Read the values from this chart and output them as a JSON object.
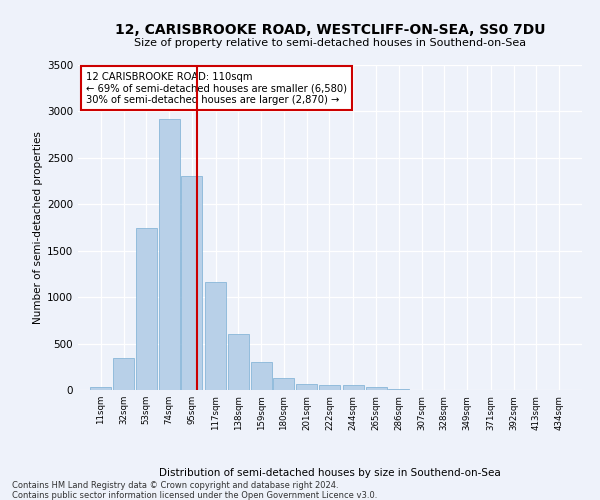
{
  "title": "12, CARISBROOKE ROAD, WESTCLIFF-ON-SEA, SS0 7DU",
  "subtitle": "Size of property relative to semi-detached houses in Southend-on-Sea",
  "xlabel": "Distribution of semi-detached houses by size in Southend-on-Sea",
  "ylabel": "Number of semi-detached properties",
  "footnote1": "Contains HM Land Registry data © Crown copyright and database right 2024.",
  "footnote2": "Contains public sector information licensed under the Open Government Licence v3.0.",
  "property_size": 110,
  "annotation_line1": "12 CARISBROOKE ROAD: 110sqm",
  "annotation_line2": "← 69% of semi-detached houses are smaller (6,580)",
  "annotation_line3": "30% of semi-detached houses are larger (2,870) →",
  "bar_color": "#b8d0e8",
  "bar_edgecolor": "#7aaed4",
  "vline_color": "#cc0000",
  "background_color": "#eef2fa",
  "annotation_box_color": "#ffffff",
  "annotation_box_edgecolor": "#cc0000",
  "ylim": [
    0,
    3500
  ],
  "bin_labels": [
    "11sqm",
    "32sqm",
    "53sqm",
    "74sqm",
    "95sqm",
    "117sqm",
    "138sqm",
    "159sqm",
    "180sqm",
    "201sqm",
    "222sqm",
    "244sqm",
    "265sqm",
    "286sqm",
    "307sqm",
    "328sqm",
    "349sqm",
    "371sqm",
    "392sqm",
    "413sqm",
    "434sqm"
  ],
  "bin_edges": [
    11,
    32,
    53,
    74,
    95,
    117,
    138,
    159,
    180,
    201,
    222,
    244,
    265,
    286,
    307,
    328,
    349,
    371,
    392,
    413,
    434
  ],
  "bar_heights": [
    30,
    340,
    1750,
    2920,
    2300,
    1160,
    600,
    305,
    130,
    70,
    55,
    50,
    30,
    10,
    5,
    3,
    2,
    1,
    1,
    1,
    0
  ]
}
